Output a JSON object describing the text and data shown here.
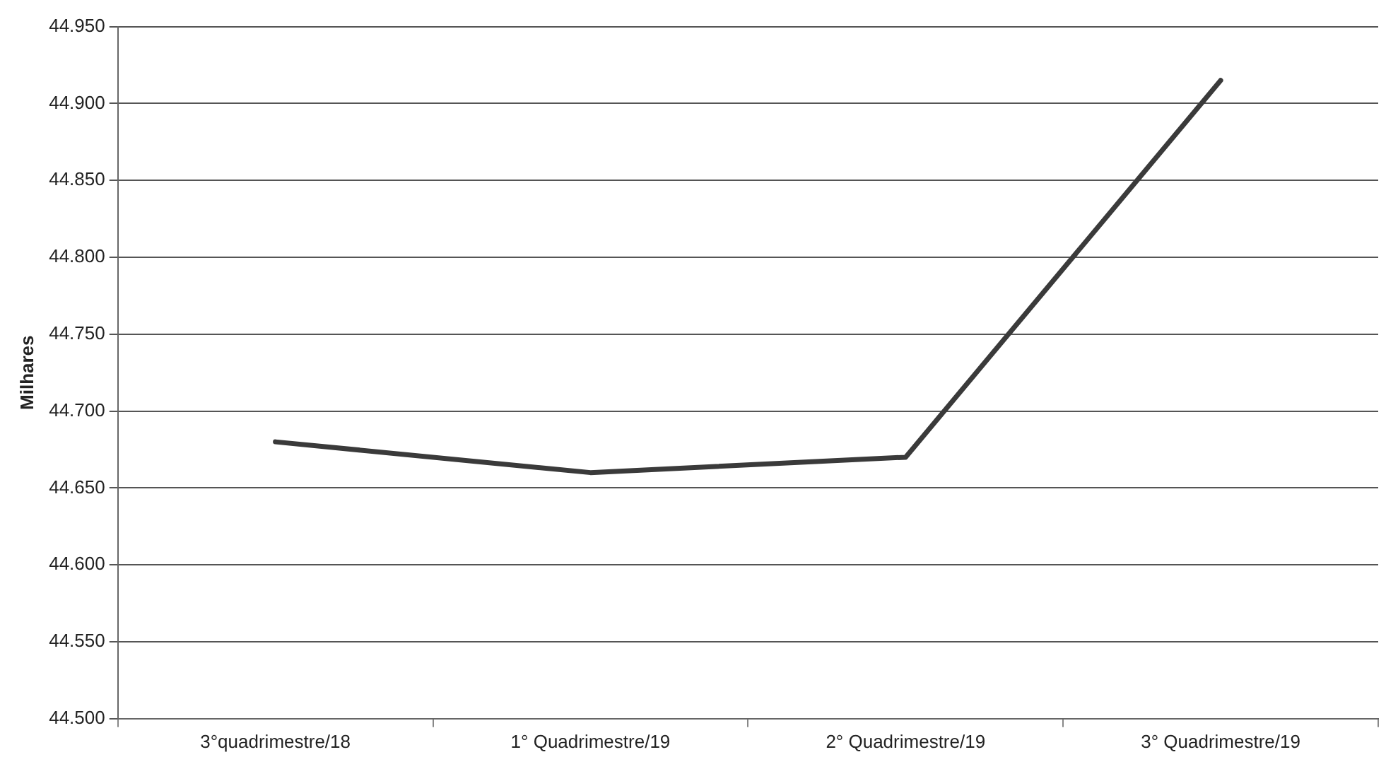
{
  "chart_data": {
    "type": "line",
    "ylabel": "Milhares",
    "categories": [
      "3°quadrimestre/18",
      "1° Quadrimestre/19",
      "2° Quadrimestre/19",
      "3° Quadrimestre/19"
    ],
    "series": [
      {
        "color": "#3a3a3a",
        "values": [
          44680,
          44660,
          44670,
          44915
        ]
      }
    ],
    "ylim": [
      44500,
      44950
    ],
    "yticks": [
      {
        "value": 44500,
        "label": "44.500"
      },
      {
        "value": 44550,
        "label": "44.550"
      },
      {
        "value": 44600,
        "label": "44.600"
      },
      {
        "value": 44650,
        "label": "44.650"
      },
      {
        "value": 44700,
        "label": "44.700"
      },
      {
        "value": 44750,
        "label": "44.750"
      },
      {
        "value": 44800,
        "label": "44.800"
      },
      {
        "value": 44850,
        "label": "44.850"
      },
      {
        "value": 44900,
        "label": "44.900"
      },
      {
        "value": 44950,
        "label": "44.950"
      }
    ],
    "grid": "y",
    "legend": false,
    "marker": "none",
    "line_style": "solid"
  }
}
